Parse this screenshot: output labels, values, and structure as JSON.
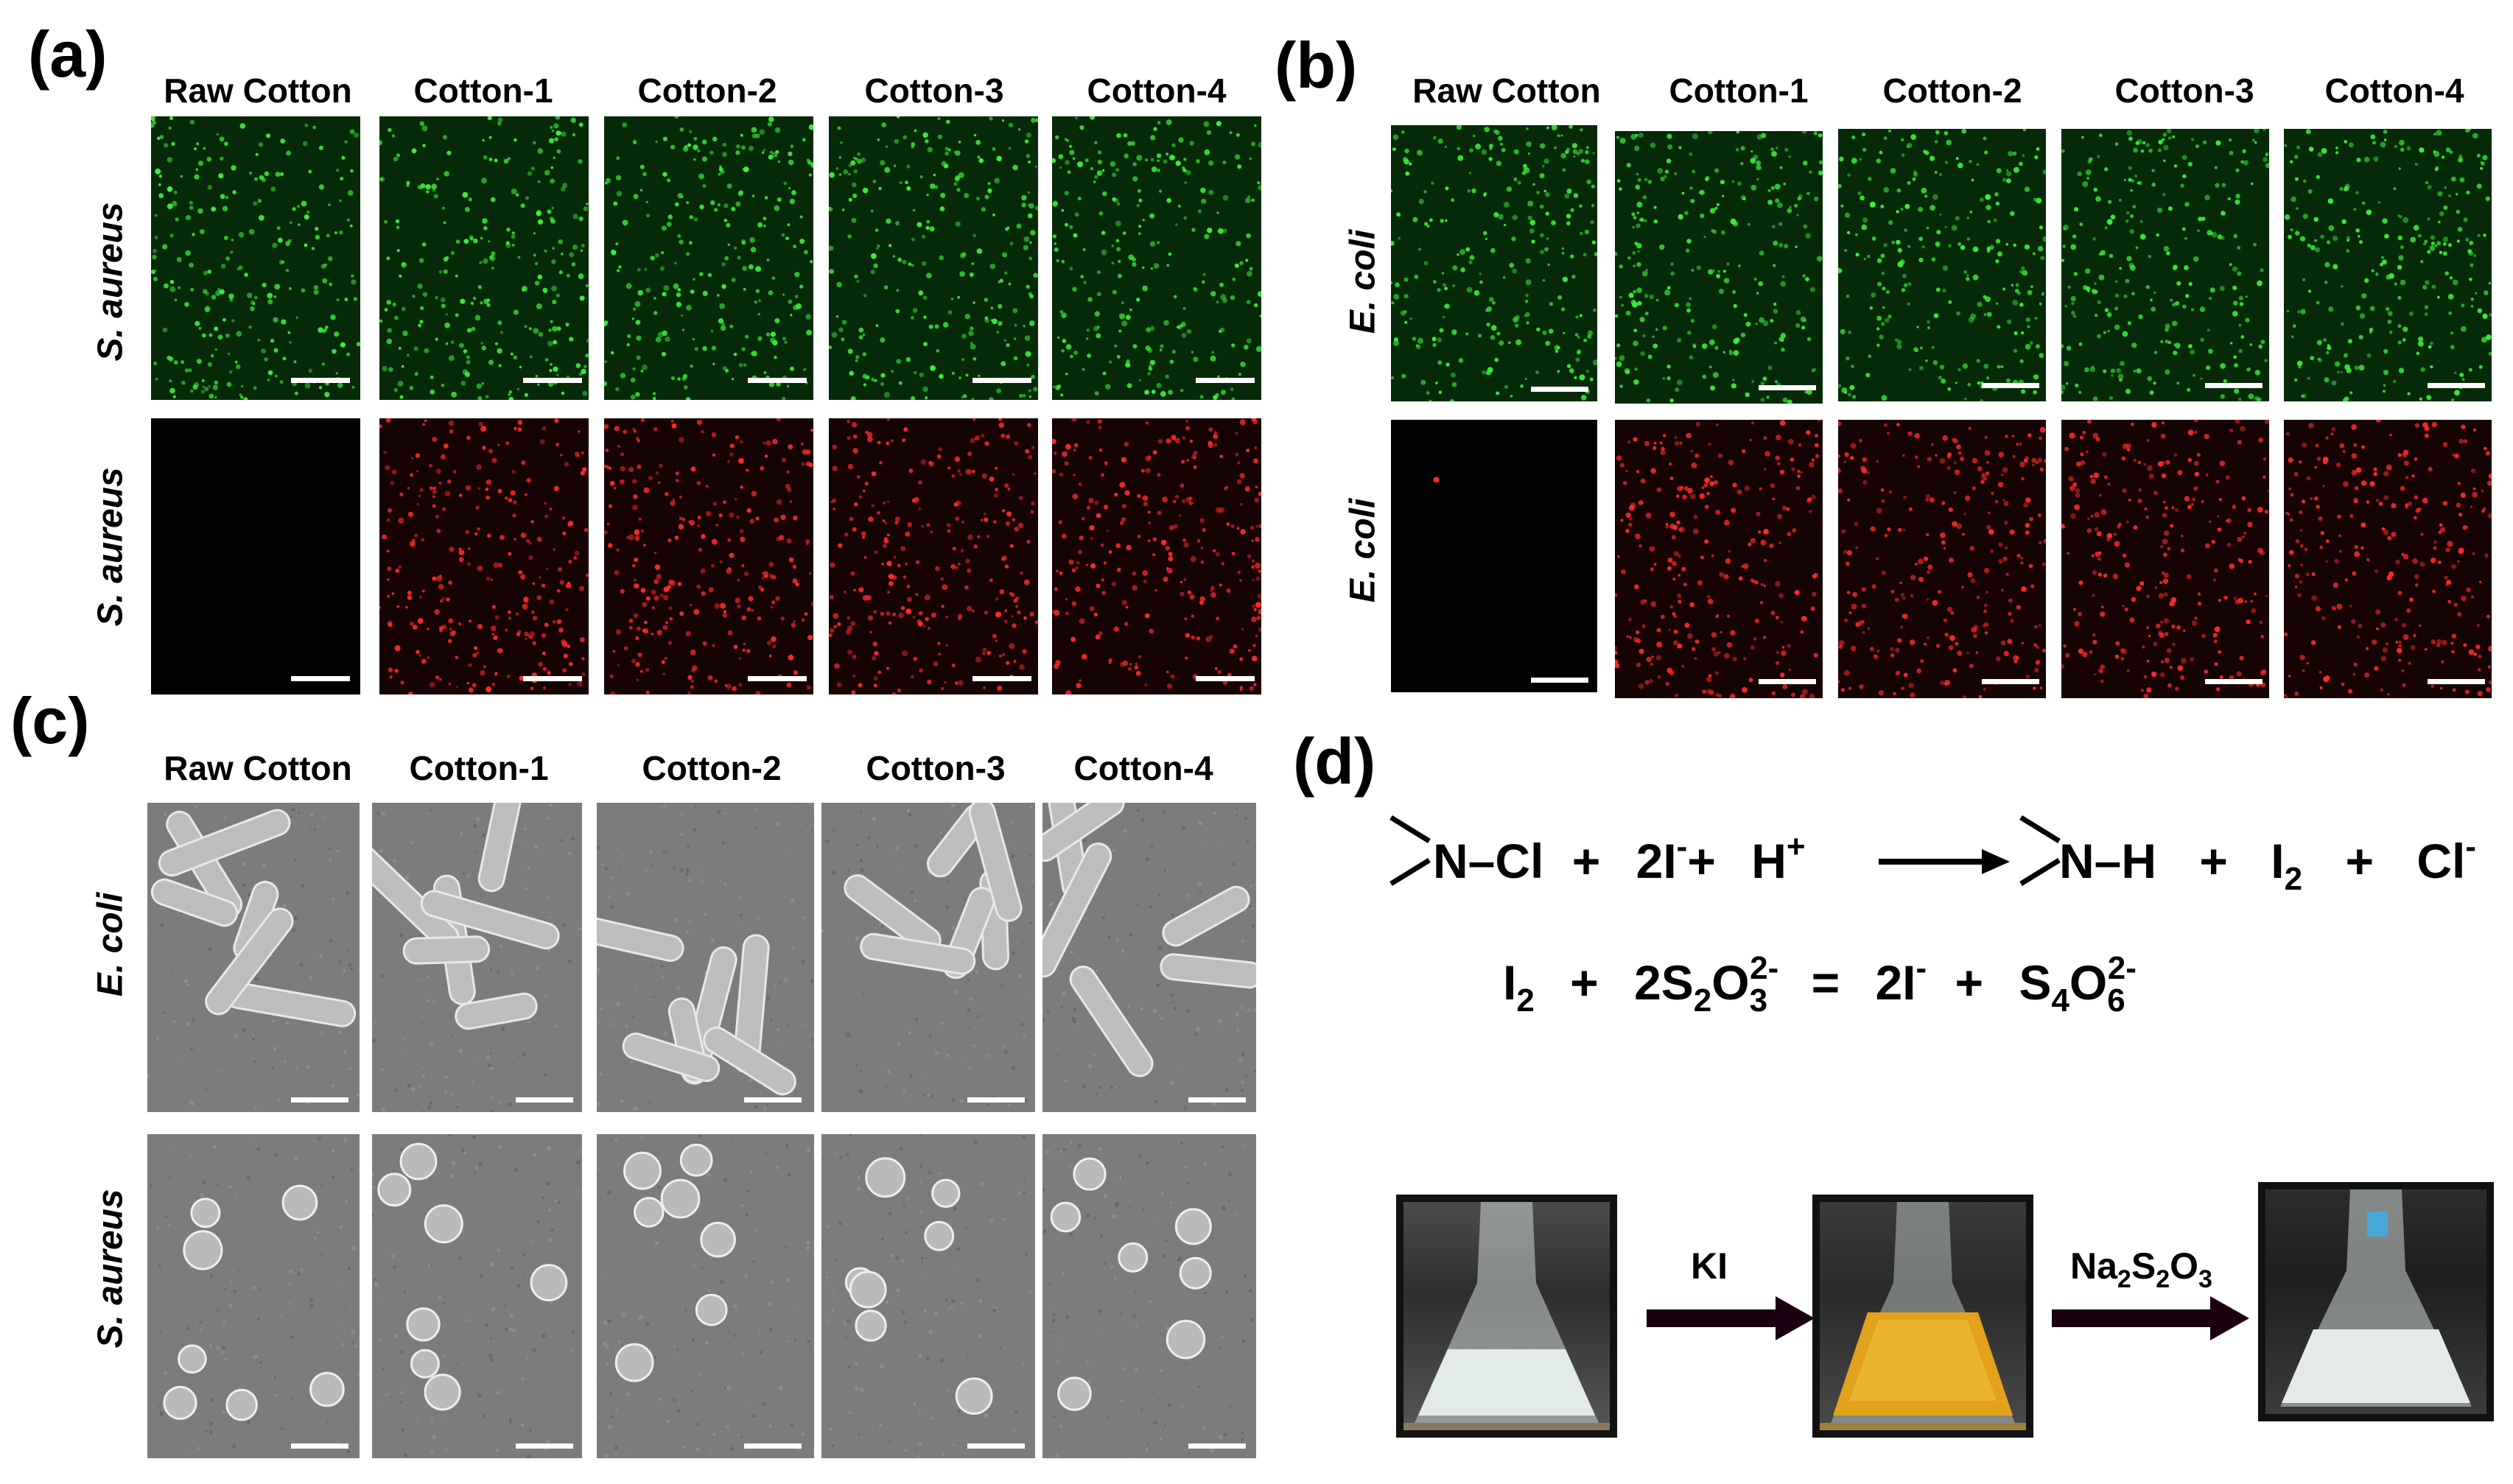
{
  "panels": {
    "a": {
      "label": "(a)",
      "row_labels": [
        "S. aureus",
        "S. aureus"
      ]
    },
    "b": {
      "label": "(b)",
      "row_labels": [
        "E. coli",
        "E. coli"
      ]
    },
    "c": {
      "label": "(c)",
      "row_labels": [
        "E. coli",
        "S. aureus"
      ]
    },
    "d": {
      "label": "(d)"
    }
  },
  "columns": [
    "Raw Cotton",
    "Cotton-1",
    "Cotton-2",
    "Cotton-3",
    "Cotton-4"
  ],
  "equation1": {
    "n": "N",
    "cl_part": "–Cl",
    "plus1": "+",
    "two_i": "2I",
    "minus": "-",
    "plus2": "+",
    "h": "H",
    "hplus": "+",
    "n2": "N",
    "h_part": "–H",
    "plus3": "+",
    "i": "I",
    "sub2": "2",
    "plus4": "+",
    "cl": "Cl",
    "cl_minus": "-"
  },
  "equation2": {
    "i": "I",
    "sub2": "2",
    "plus1": "+",
    "thio_a": "2S",
    "thio_s": "2",
    "thio_o": "O",
    "thio_os": "3",
    "thio_charge": "2-",
    "eq": "=",
    "two_i": "2I",
    "minus": "-",
    "plus2": "+",
    "tet_s": "S",
    "tet_s_sub": "4",
    "tet_o": "O",
    "tet_o_sub": "6",
    "tet_charge": "2-"
  },
  "reagents": {
    "arrow1": "KI",
    "arrow2_na": "Na",
    "arrow2_na_sub": "2",
    "arrow2_s": "S",
    "arrow2_s_sub": "2",
    "arrow2_o": "O",
    "arrow2_o_sub": "3"
  },
  "colors": {
    "live": "#3cf03c",
    "dead": "#ff2a2a",
    "sem": "#7c7c7c",
    "solution_clear": "#dfe6e6",
    "solution_yellow": "#e2a21c",
    "arrow": "#1a0010"
  }
}
